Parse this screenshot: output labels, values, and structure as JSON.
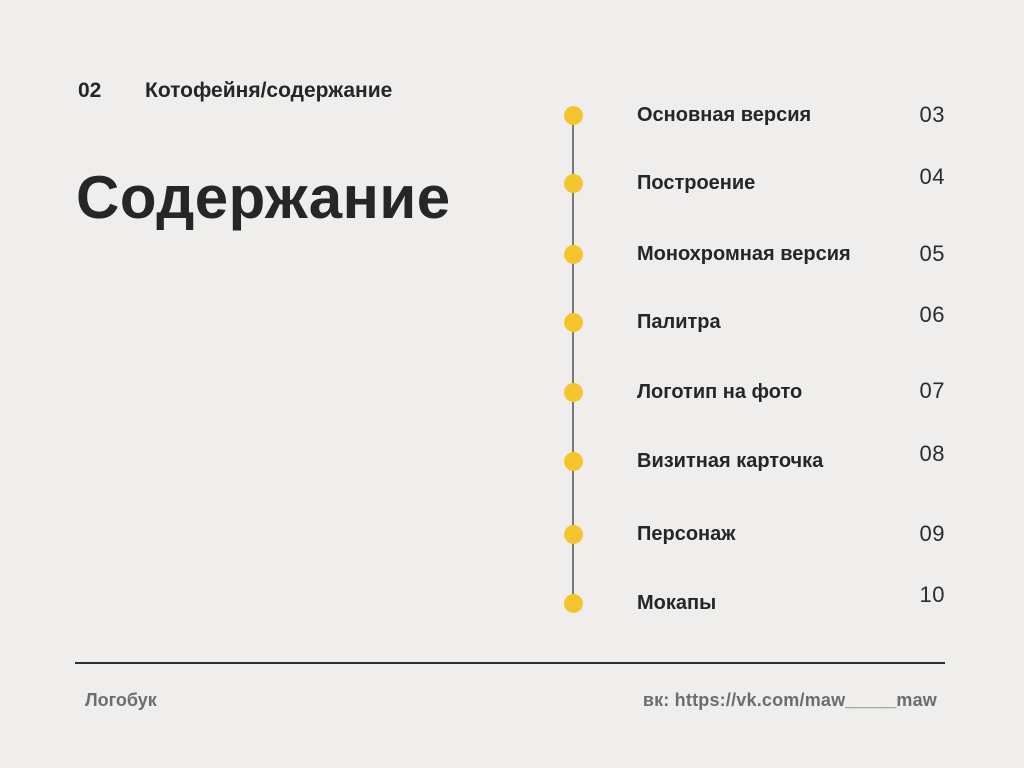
{
  "header": {
    "page_number": "02",
    "breadcrumb": "Котофейня/содержание"
  },
  "title": "Содержание",
  "toc": {
    "items": [
      {
        "label": "Основная версия",
        "page": "03"
      },
      {
        "label": "Построение",
        "page": "04"
      },
      {
        "label": "Монохромная версия",
        "page": "05"
      },
      {
        "label": "Палитра",
        "page": "06"
      },
      {
        "label": "Логотип на фото",
        "page": "07"
      },
      {
        "label": "Визитная карточка",
        "page": "08"
      },
      {
        "label": "Персонаж",
        "page": "09"
      },
      {
        "label": "Мокапы",
        "page": "10"
      }
    ]
  },
  "footer": {
    "brand": "Логобук",
    "link": "вк: https://vk.com/maw_____maw"
  },
  "colors": {
    "background": "#efeeec",
    "text": "#262626",
    "accent_yellow": "#f6c52e",
    "line_gray": "#7a7a7a",
    "footer_gray": "#6d6d6d"
  },
  "icons": {
    "timeline_dot": "filled-circle"
  }
}
